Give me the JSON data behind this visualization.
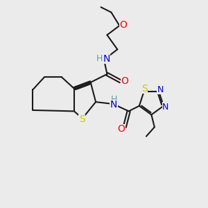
{
  "background_color": "#ebebeb",
  "bond_color": "#1a1a1a",
  "atom_colors": {
    "N": "#0000cd",
    "O": "#ff0000",
    "S": "#cccc00",
    "H": "#5f9ea0",
    "C": "#1a1a1a"
  }
}
